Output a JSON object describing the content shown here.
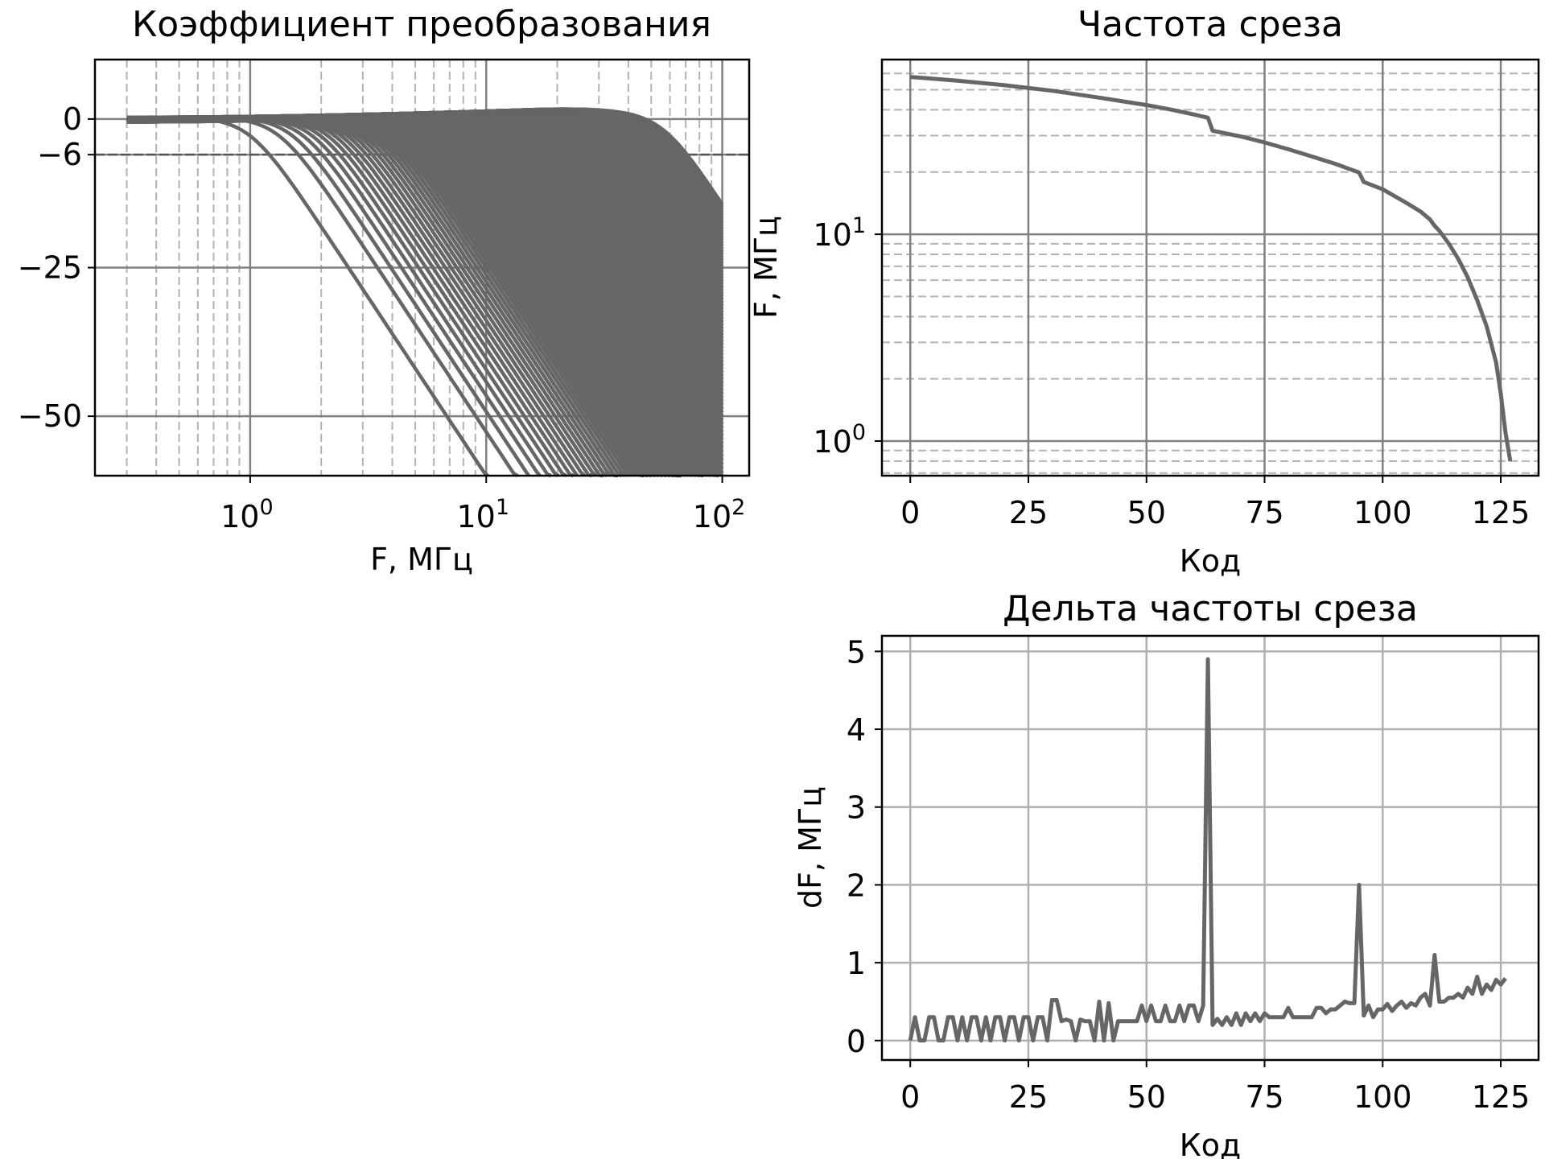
{
  "chart_data": [
    {
      "type": "line",
      "title": "Коэффициент преобразования",
      "xlabel": "F, МГц",
      "ylabel": "",
      "xscale": "log",
      "xlim": [
        0.22,
        130
      ],
      "ylim": [
        -60,
        10
      ],
      "xticks": [
        {
          "base": "10",
          "exp": "0"
        },
        {
          "base": "10",
          "exp": "1"
        },
        {
          "base": "10",
          "exp": "2"
        }
      ],
      "yticks": [
        "0",
        "−6",
        "−25",
        "−50"
      ],
      "ytick_values": [
        0,
        -6,
        -25,
        -50
      ],
      "grid": true,
      "minor_grid": "dashed",
      "color": "#666666",
      "series_model": {
        "description_free": true,
        "freq_range": [
          0.3,
          100
        ],
        "cutoff_mhz_first": 1.0,
        "cutoff_mhz_last": 57.7,
        "count": 128,
        "peak_gain_db": 2.2,
        "floor_db": -60
      }
    },
    {
      "type": "line",
      "title": "Частота среза",
      "xlabel": "Код",
      "ylabel": "F, МГц",
      "yscale": "log",
      "xlim": [
        -6,
        133
      ],
      "ylim": [
        0.68,
        70
      ],
      "xticks": [
        "0",
        "25",
        "50",
        "75",
        "100",
        "125"
      ],
      "xtick_values": [
        0,
        25,
        50,
        75,
        100,
        125
      ],
      "yticks": [
        {
          "base": "10",
          "exp": "0"
        },
        {
          "base": "10",
          "exp": "1"
        }
      ],
      "grid": true,
      "minor_grid": "dashed",
      "color": "#666666",
      "x": [
        0,
        10,
        20,
        30,
        40,
        50,
        55,
        60,
        63,
        64,
        70,
        75,
        80,
        85,
        90,
        95,
        96,
        100,
        105,
        108,
        110,
        111,
        112,
        114,
        116,
        118,
        120,
        122,
        124,
        125,
        126,
        127
      ],
      "y": [
        57.7,
        55.3,
        52.6,
        49.5,
        45.8,
        42.2,
        40.2,
        38.0,
        36.6,
        31.7,
        29.7,
        27.8,
        25.8,
        23.8,
        21.9,
        19.9,
        17.9,
        16.5,
        14.2,
        12.9,
        11.8,
        11.0,
        10.4,
        9.0,
        7.6,
        6.2,
        4.8,
        3.6,
        2.4,
        1.7,
        1.1,
        0.8
      ]
    },
    {
      "type": "line",
      "title": "Дельта частоты среза",
      "xlabel": "Код",
      "ylabel": "dF, МГц",
      "xlim": [
        -6,
        133
      ],
      "ylim": [
        -0.25,
        5.2
      ],
      "xticks": [
        "0",
        "25",
        "50",
        "75",
        "100",
        "125"
      ],
      "xtick_values": [
        0,
        25,
        50,
        75,
        100,
        125
      ],
      "yticks": [
        "0",
        "1",
        "2",
        "3",
        "4",
        "5"
      ],
      "ytick_values": [
        0,
        1,
        2,
        3,
        4,
        5
      ],
      "grid": true,
      "color": "#666666",
      "x": [
        0,
        1,
        2,
        3,
        4,
        5,
        6,
        7,
        8,
        9,
        10,
        11,
        12,
        13,
        14,
        15,
        16,
        17,
        18,
        19,
        20,
        21,
        22,
        23,
        24,
        25,
        26,
        27,
        28,
        29,
        30,
        31,
        32,
        33,
        34,
        35,
        36,
        37,
        38,
        39,
        40,
        41,
        42,
        43,
        44,
        45,
        46,
        47,
        48,
        49,
        50,
        51,
        52,
        53,
        54,
        55,
        56,
        57,
        58,
        59,
        60,
        61,
        62,
        63,
        64,
        65,
        66,
        67,
        68,
        69,
        70,
        71,
        72,
        73,
        74,
        75,
        76,
        77,
        78,
        79,
        80,
        81,
        82,
        83,
        84,
        85,
        86,
        87,
        88,
        89,
        90,
        91,
        92,
        93,
        94,
        95,
        96,
        97,
        98,
        99,
        100,
        101,
        102,
        103,
        104,
        105,
        106,
        107,
        108,
        109,
        110,
        111,
        112,
        113,
        114,
        115,
        116,
        117,
        118,
        119,
        120,
        121,
        122,
        123,
        124,
        125,
        126
      ],
      "values": [
        0.0,
        0.3,
        0.0,
        0.0,
        0.3,
        0.3,
        0.0,
        0.0,
        0.3,
        0.3,
        0.0,
        0.3,
        0.0,
        0.3,
        0.3,
        0.0,
        0.3,
        0.0,
        0.3,
        0.3,
        0.0,
        0.3,
        0.3,
        0.0,
        0.3,
        0.3,
        0.0,
        0.3,
        0.3,
        0.0,
        0.52,
        0.52,
        0.25,
        0.27,
        0.25,
        0.0,
        0.27,
        0.25,
        0.25,
        0.0,
        0.5,
        0.0,
        0.48,
        0.0,
        0.25,
        0.25,
        0.25,
        0.25,
        0.25,
        0.45,
        0.25,
        0.45,
        0.25,
        0.25,
        0.45,
        0.25,
        0.25,
        0.45,
        0.25,
        0.45,
        0.45,
        0.25,
        0.45,
        4.9,
        0.2,
        0.28,
        0.2,
        0.3,
        0.2,
        0.35,
        0.2,
        0.35,
        0.25,
        0.35,
        0.25,
        0.35,
        0.3,
        0.3,
        0.3,
        0.3,
        0.42,
        0.3,
        0.3,
        0.3,
        0.3,
        0.3,
        0.42,
        0.42,
        0.35,
        0.4,
        0.4,
        0.45,
        0.5,
        0.48,
        0.48,
        2.0,
        0.32,
        0.45,
        0.3,
        0.4,
        0.4,
        0.47,
        0.38,
        0.45,
        0.5,
        0.42,
        0.48,
        0.45,
        0.55,
        0.6,
        0.45,
        1.1,
        0.5,
        0.5,
        0.55,
        0.55,
        0.6,
        0.55,
        0.68,
        0.6,
        0.82,
        0.6,
        0.72,
        0.65,
        0.78,
        0.72,
        0.8
      ]
    }
  ]
}
